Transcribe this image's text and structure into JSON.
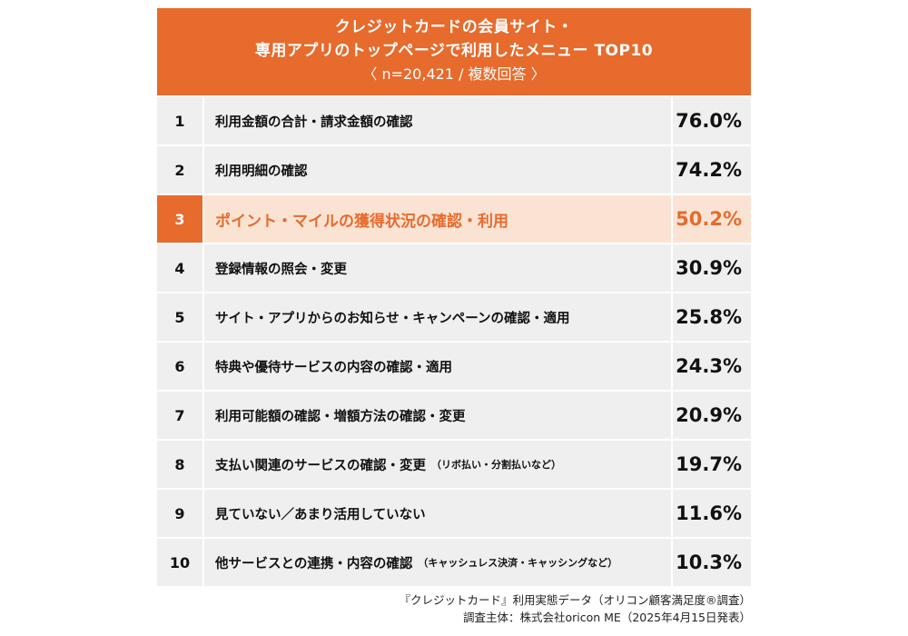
{
  "header": {
    "line1": "クレジットカードの会員サイト・",
    "line2": "専用アプリのトップページで利用したメニュー TOP10",
    "line3": "〈 n=20,421 / 複数回答 〉"
  },
  "highlight_rank": 3,
  "colors": {
    "accent": "#E66B2D",
    "highlight_bg": "#FBE3D4",
    "row_bg": "#EFEFEF"
  },
  "chart_data": {
    "type": "table",
    "title": "クレジットカードの会員サイト・専用アプリのトップページで利用したメニュー TOP10",
    "subtitle": "〈 n=20,421 / 複数回答 〉",
    "rows": [
      {
        "rank": "1",
        "label": "利用金額の合計・請求金額の確認",
        "note": "",
        "value": 76.0,
        "value_text": "76.0%"
      },
      {
        "rank": "2",
        "label": "利用明細の確認",
        "note": "",
        "value": 74.2,
        "value_text": "74.2%"
      },
      {
        "rank": "3",
        "label": "ポイント・マイルの獲得状況の確認・利用",
        "note": "",
        "value": 50.2,
        "value_text": "50.2%"
      },
      {
        "rank": "4",
        "label": "登録情報の照会・変更",
        "note": "",
        "value": 30.9,
        "value_text": "30.9%"
      },
      {
        "rank": "5",
        "label": "サイト・アプリからのお知らせ・キャンペーンの確認・適用",
        "note": "",
        "value": 25.8,
        "value_text": "25.8%"
      },
      {
        "rank": "6",
        "label": "特典や優待サービスの内容の確認・適用",
        "note": "",
        "value": 24.3,
        "value_text": "24.3%"
      },
      {
        "rank": "7",
        "label": "利用可能額の確認・増額方法の確認・変更",
        "note": "",
        "value": 20.9,
        "value_text": "20.9%"
      },
      {
        "rank": "8",
        "label": "支払い関連のサービスの確認・変更",
        "note": "（リボ払い・分割払いなど）",
        "value": 19.7,
        "value_text": "19.7%"
      },
      {
        "rank": "9",
        "label": "見ていない／あまり活用していない",
        "note": "",
        "value": 11.6,
        "value_text": "11.6%"
      },
      {
        "rank": "10",
        "label": "他サービスとの連携・内容の確認",
        "note": "（キャッシュレス決済・キャッシングなど）",
        "value": 10.3,
        "value_text": "10.3%"
      }
    ]
  },
  "footer": {
    "line1": "『クレジットカード』利用実態データ（オリコン顧客満足度®調査）",
    "line2": "調査主体：株式会社oricon ME（2025年4月15日発表）"
  }
}
